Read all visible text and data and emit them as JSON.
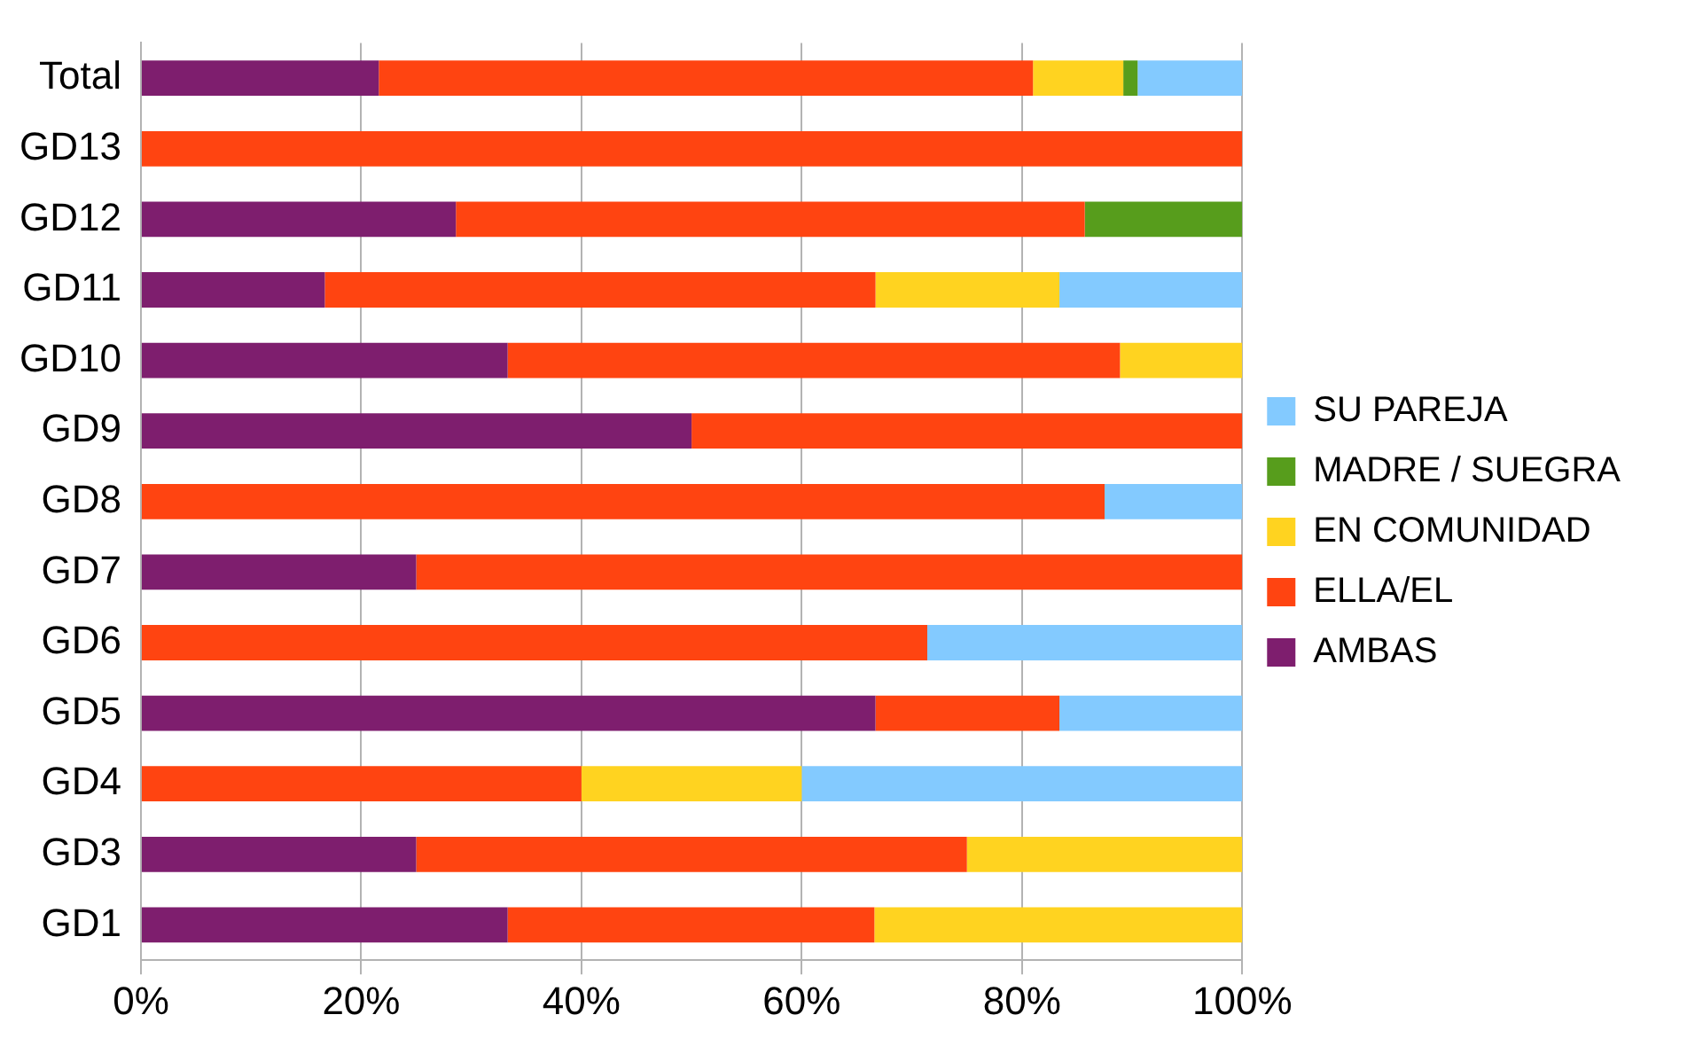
{
  "chart_data": {
    "type": "bar",
    "orientation": "horizontal",
    "stacked": true,
    "categories": [
      "Total",
      "GD13",
      "GD12",
      "GD11",
      "GD10",
      "GD9",
      "GD8",
      "GD7",
      "GD6",
      "GD5",
      "GD4",
      "GD3",
      "GD1"
    ],
    "series": [
      {
        "name": "AMBAS",
        "color": "#7e1e6e",
        "values": [
          21.6,
          0,
          28.6,
          16.7,
          33.3,
          50,
          0,
          25,
          0,
          66.7,
          0,
          25,
          33.3
        ]
      },
      {
        "name": "ELLA/EL",
        "color": "#ff4411",
        "values": [
          59.4,
          100,
          57.1,
          50,
          55.6,
          50,
          87.5,
          75,
          71.4,
          16.7,
          40,
          50,
          33.3
        ]
      },
      {
        "name": "EN COMUNIDAD",
        "color": "#ffd320",
        "values": [
          8.2,
          0,
          0,
          16.7,
          11.1,
          0,
          0,
          0,
          0,
          0,
          20,
          25,
          33.4
        ]
      },
      {
        "name": "MADRE / SUEGRA",
        "color": "#579d1c",
        "values": [
          1.3,
          0,
          14.3,
          0,
          0,
          0,
          0,
          0,
          0,
          0,
          0,
          0,
          0
        ]
      },
      {
        "name": "SU PAREJA",
        "color": "#83caff",
        "values": [
          9.5,
          0,
          0,
          16.6,
          0,
          0,
          12.5,
          0,
          28.6,
          16.6,
          40,
          0,
          0
        ]
      }
    ],
    "xlim": [
      0,
      100
    ],
    "xticks": [
      {
        "value": 0,
        "label": "0%"
      },
      {
        "value": 20,
        "label": "20%"
      },
      {
        "value": 40,
        "label": "40%"
      },
      {
        "value": 60,
        "label": "60%"
      },
      {
        "value": 80,
        "label": "80%"
      },
      {
        "value": 100,
        "label": "100%"
      }
    ],
    "grid": "x",
    "legend": "right"
  }
}
